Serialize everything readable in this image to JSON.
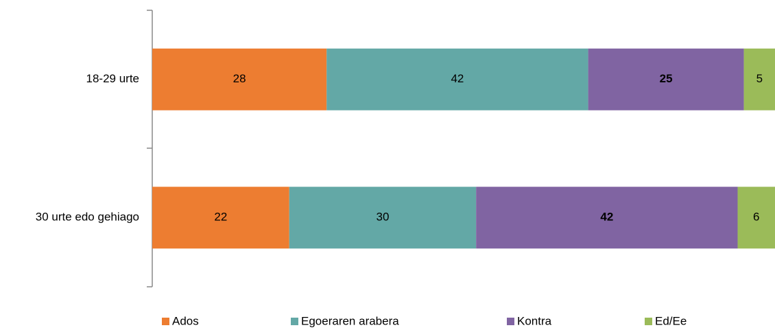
{
  "chart_data": {
    "type": "stacked-bar",
    "orientation": "horizontal",
    "categories": [
      "18-29 urte",
      "30 urte edo gehiago"
    ],
    "series": [
      {
        "name": "Ados",
        "color": "#ed7d31",
        "label_color": "#000000",
        "values": [
          28,
          22
        ]
      },
      {
        "name": "Egoeraren arabera",
        "color": "#63a8a6",
        "label_color": "#000000",
        "values": [
          42,
          30
        ]
      },
      {
        "name": "Kontra",
        "color": "#8064a2",
        "label_color": "#ffffff",
        "values": [
          25,
          42
        ]
      },
      {
        "name": "Ed/Ee",
        "color": "#9bbb59",
        "label_color": "#000000",
        "values": [
          5,
          6
        ]
      }
    ],
    "xlim": [
      0,
      100
    ],
    "legend": "bottom"
  }
}
